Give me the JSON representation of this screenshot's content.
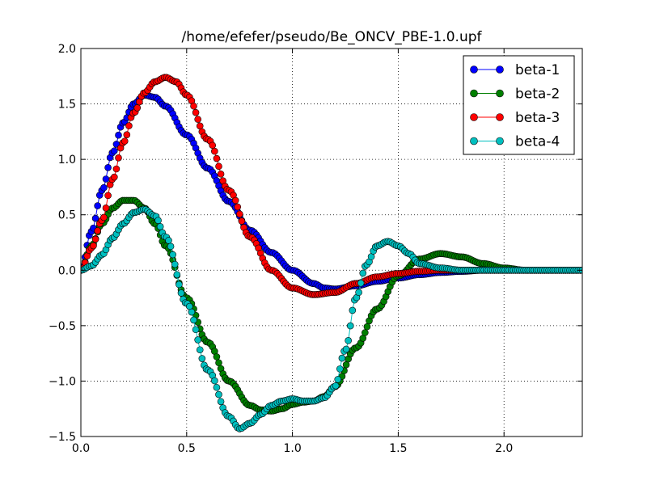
{
  "chart_data": {
    "type": "line",
    "title": "/home/efefer/pseudo/Be_ONCV_PBE-1.0.upf",
    "xlabel": "",
    "ylabel": "",
    "xlim": [
      0.0,
      2.37
    ],
    "ylim": [
      -1.5,
      2.0
    ],
    "xticks": [
      0.0,
      0.5,
      1.0,
      1.5,
      2.0
    ],
    "xtick_labels": [
      "0.0",
      "0.5",
      "1.0",
      "1.5",
      "2.0"
    ],
    "yticks": [
      -1.5,
      -1.0,
      -0.5,
      0.0,
      0.5,
      1.0,
      1.5,
      2.0
    ],
    "ytick_labels": [
      "−1.5",
      "−1.0",
      "−0.5",
      "0.0",
      "0.5",
      "1.0",
      "1.5",
      "2.0"
    ],
    "grid": true,
    "legend_position": "top-right",
    "marker": "circle",
    "series": [
      {
        "name": "beta-1",
        "color": "#0000ff",
        "points": [
          [
            0.0,
            0.0
          ],
          [
            0.05,
            0.35
          ],
          [
            0.1,
            0.72
          ],
          [
            0.15,
            1.06
          ],
          [
            0.2,
            1.33
          ],
          [
            0.25,
            1.5
          ],
          [
            0.3,
            1.58
          ],
          [
            0.35,
            1.56
          ],
          [
            0.4,
            1.48
          ],
          [
            0.5,
            1.22
          ],
          [
            0.6,
            0.92
          ],
          [
            0.7,
            0.62
          ],
          [
            0.8,
            0.36
          ],
          [
            0.9,
            0.16
          ],
          [
            1.0,
            0.0
          ],
          [
            1.1,
            -0.12
          ],
          [
            1.15,
            -0.16
          ],
          [
            1.2,
            -0.17
          ],
          [
            1.3,
            -0.14
          ],
          [
            1.4,
            -0.1
          ],
          [
            1.5,
            -0.07
          ],
          [
            1.6,
            -0.04
          ],
          [
            1.7,
            -0.02
          ],
          [
            1.8,
            -0.01
          ],
          [
            1.9,
            0.0
          ],
          [
            2.0,
            0.0
          ],
          [
            2.37,
            0.0
          ]
        ]
      },
      {
        "name": "beta-2",
        "color": "#007f00",
        "points": [
          [
            0.0,
            0.0
          ],
          [
            0.05,
            0.22
          ],
          [
            0.1,
            0.42
          ],
          [
            0.15,
            0.56
          ],
          [
            0.2,
            0.63
          ],
          [
            0.25,
            0.63
          ],
          [
            0.3,
            0.56
          ],
          [
            0.35,
            0.42
          ],
          [
            0.4,
            0.22
          ],
          [
            0.5,
            -0.25
          ],
          [
            0.6,
            -0.65
          ],
          [
            0.7,
            -1.0
          ],
          [
            0.8,
            -1.22
          ],
          [
            0.85,
            -1.26
          ],
          [
            0.9,
            -1.27
          ],
          [
            0.95,
            -1.25
          ],
          [
            1.0,
            -1.21
          ],
          [
            1.05,
            -1.19
          ],
          [
            1.1,
            -1.18
          ],
          [
            1.15,
            -1.14
          ],
          [
            1.2,
            -1.05
          ],
          [
            1.3,
            -0.7
          ],
          [
            1.4,
            -0.35
          ],
          [
            1.5,
            -0.05
          ],
          [
            1.6,
            0.1
          ],
          [
            1.7,
            0.15
          ],
          [
            1.8,
            0.12
          ],
          [
            1.9,
            0.06
          ],
          [
            2.0,
            0.02
          ],
          [
            2.1,
            0.0
          ],
          [
            2.37,
            0.0
          ]
        ]
      },
      {
        "name": "beta-3",
        "color": "#ff0000",
        "points": [
          [
            0.0,
            0.0
          ],
          [
            0.05,
            0.2
          ],
          [
            0.1,
            0.45
          ],
          [
            0.15,
            0.82
          ],
          [
            0.2,
            1.15
          ],
          [
            0.25,
            1.42
          ],
          [
            0.3,
            1.6
          ],
          [
            0.35,
            1.7
          ],
          [
            0.4,
            1.74
          ],
          [
            0.45,
            1.7
          ],
          [
            0.5,
            1.58
          ],
          [
            0.6,
            1.18
          ],
          [
            0.7,
            0.72
          ],
          [
            0.8,
            0.3
          ],
          [
            0.9,
            0.0
          ],
          [
            1.0,
            -0.16
          ],
          [
            1.1,
            -0.22
          ],
          [
            1.2,
            -0.2
          ],
          [
            1.3,
            -0.12
          ],
          [
            1.4,
            -0.06
          ],
          [
            1.5,
            -0.03
          ],
          [
            1.6,
            -0.01
          ],
          [
            1.7,
            0.0
          ],
          [
            1.8,
            0.0
          ],
          [
            2.37,
            0.0
          ]
        ]
      },
      {
        "name": "beta-4",
        "color": "#00bfbf",
        "points": [
          [
            0.0,
            0.0
          ],
          [
            0.05,
            0.04
          ],
          [
            0.1,
            0.14
          ],
          [
            0.15,
            0.29
          ],
          [
            0.2,
            0.42
          ],
          [
            0.25,
            0.52
          ],
          [
            0.3,
            0.55
          ],
          [
            0.35,
            0.49
          ],
          [
            0.4,
            0.3
          ],
          [
            0.5,
            -0.3
          ],
          [
            0.6,
            -0.9
          ],
          [
            0.7,
            -1.32
          ],
          [
            0.75,
            -1.43
          ],
          [
            0.8,
            -1.38
          ],
          [
            0.85,
            -1.3
          ],
          [
            0.9,
            -1.22
          ],
          [
            0.95,
            -1.18
          ],
          [
            1.0,
            -1.16
          ],
          [
            1.05,
            -1.18
          ],
          [
            1.1,
            -1.18
          ],
          [
            1.15,
            -1.15
          ],
          [
            1.2,
            -1.05
          ],
          [
            1.25,
            -0.72
          ],
          [
            1.3,
            -0.25
          ],
          [
            1.35,
            0.05
          ],
          [
            1.4,
            0.22
          ],
          [
            1.45,
            0.26
          ],
          [
            1.5,
            0.22
          ],
          [
            1.55,
            0.15
          ],
          [
            1.6,
            0.06
          ],
          [
            1.7,
            0.02
          ],
          [
            1.8,
            0.0
          ],
          [
            2.37,
            0.0
          ]
        ]
      }
    ]
  }
}
